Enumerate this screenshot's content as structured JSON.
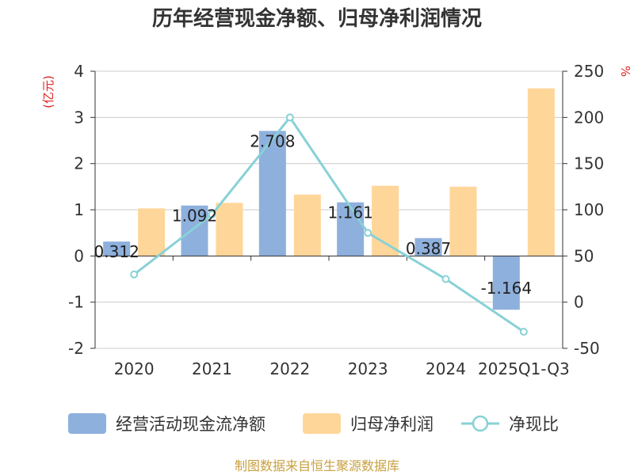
{
  "chart_data": {
    "type": "bar+line",
    "title": "历年经营现金净额、归母净利润情况",
    "categories": [
      "2020",
      "2021",
      "2022",
      "2023",
      "2024",
      "2025Q1-Q3"
    ],
    "series": [
      {
        "name": "经营活动现金流净额",
        "type": "bar",
        "axis": "left",
        "values": [
          0.312,
          1.092,
          2.708,
          1.161,
          0.387,
          -1.164
        ],
        "labels": [
          "0.312",
          "1.092",
          "2.708",
          "1.161",
          "0.387",
          "-1.164"
        ],
        "color": "#8eb0dd"
      },
      {
        "name": "归母净利润",
        "type": "bar",
        "axis": "left",
        "values": [
          1.03,
          1.15,
          1.33,
          1.52,
          1.5,
          3.63
        ],
        "color": "#ffd699"
      },
      {
        "name": "净现比",
        "type": "line",
        "axis": "right",
        "values": [
          30,
          95,
          200,
          75,
          25,
          -32
        ],
        "color": "#88d1d6"
      }
    ],
    "y_left": {
      "label": "(亿元)",
      "min": -2,
      "max": 4,
      "ticks": [
        "-2",
        "-1",
        "0",
        "1",
        "2",
        "3",
        "4"
      ]
    },
    "y_right": {
      "label": "%",
      "min": -50,
      "max": 250,
      "ticks": [
        "-50",
        "0",
        "50",
        "100",
        "150",
        "200",
        "250"
      ]
    },
    "grid": true,
    "legend_position": "bottom"
  },
  "colors": {
    "left_unit": "#e02020",
    "right_unit": "#e02020",
    "source": "#c8a040"
  },
  "source": "制图数据来自恒生聚源数据库"
}
